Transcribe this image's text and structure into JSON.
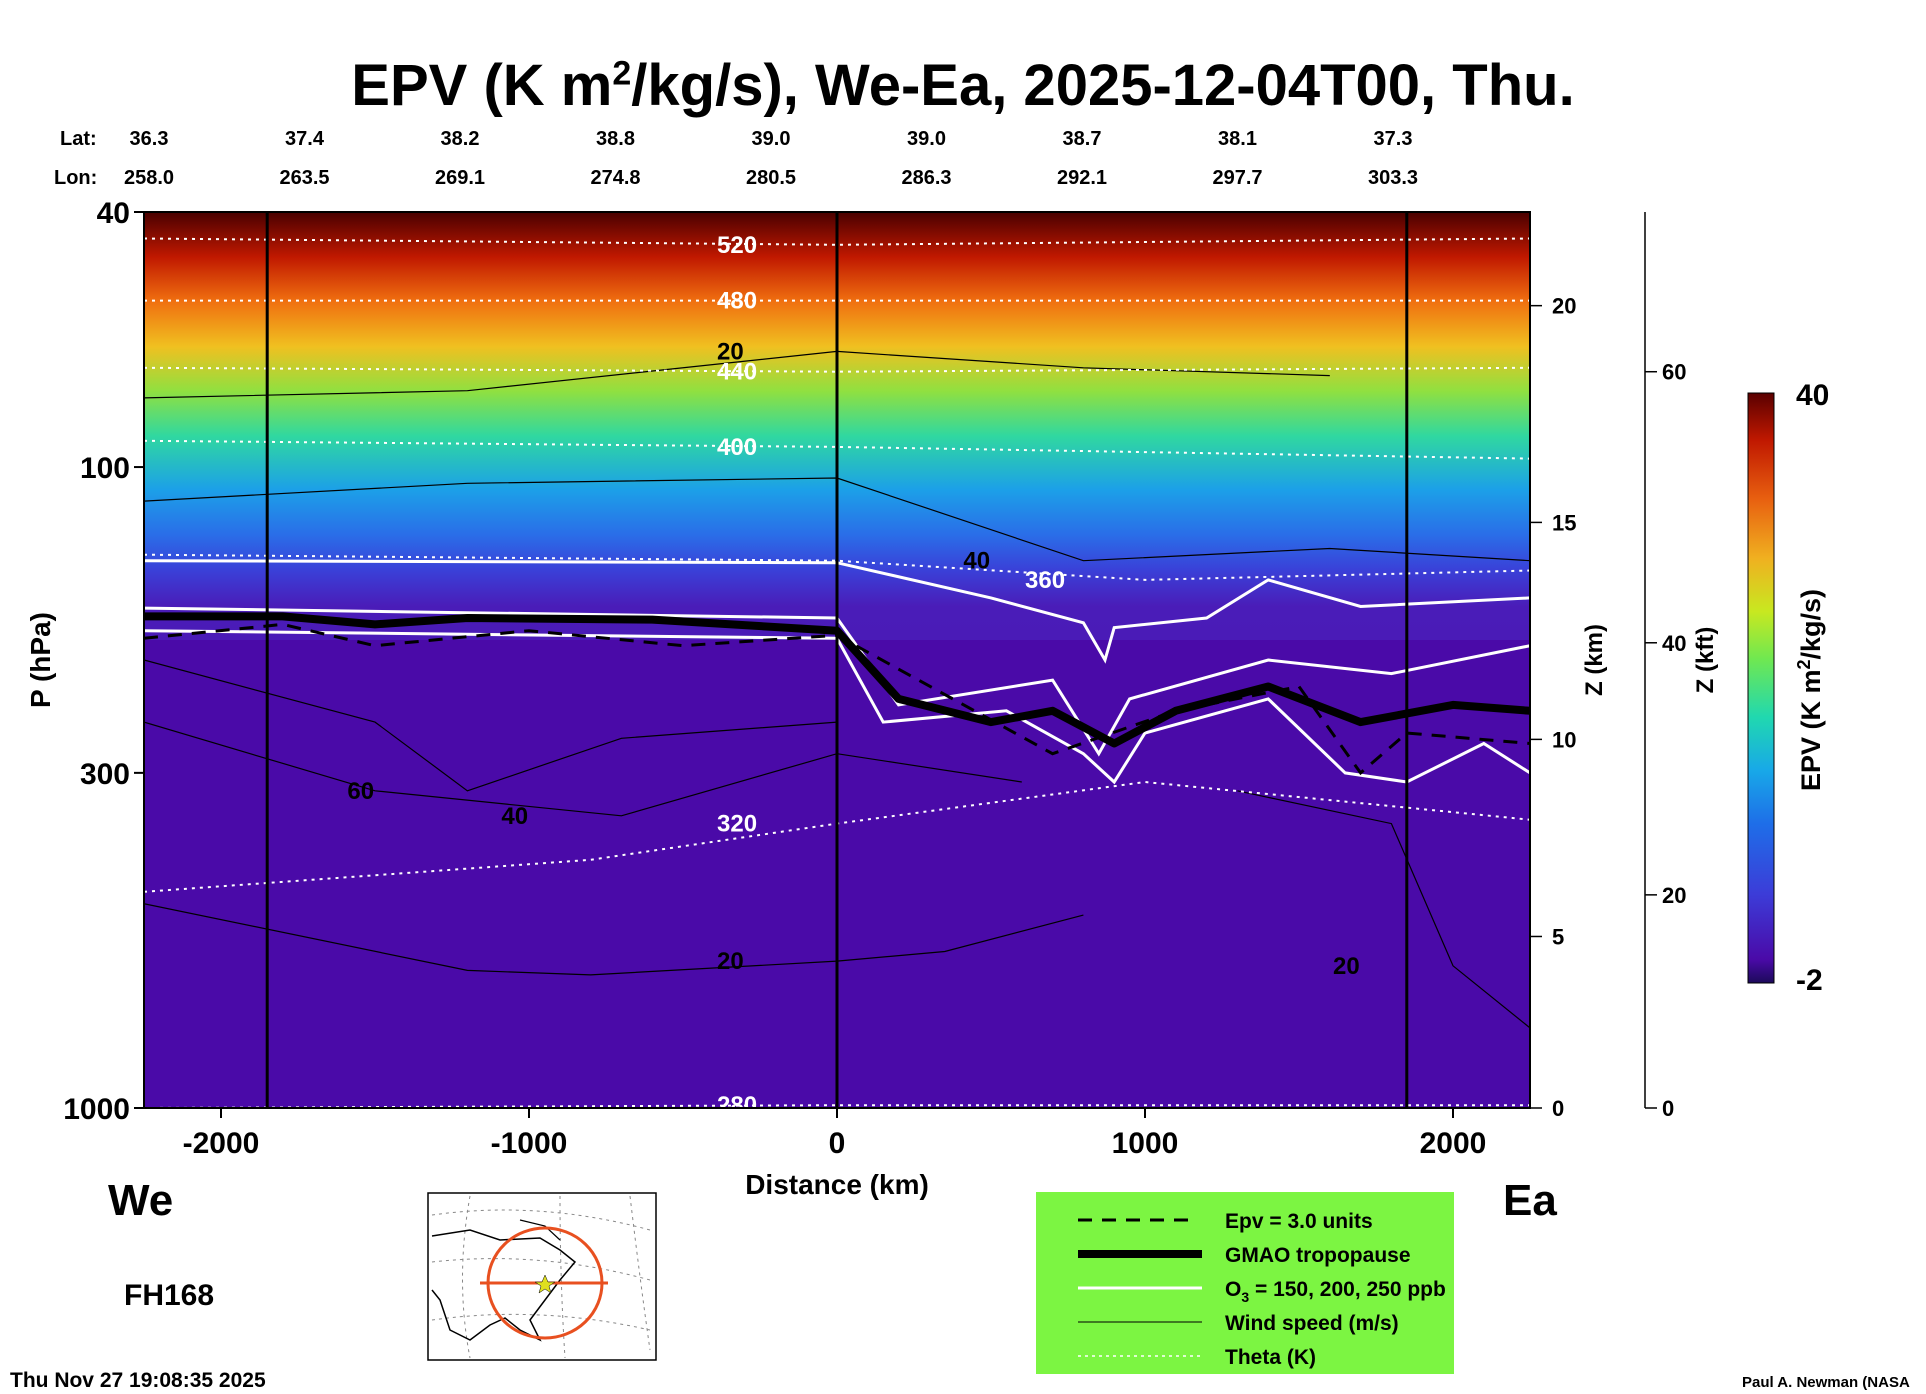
{
  "title": {
    "main_prefix": "EPV (K m",
    "main_sup": "2",
    "main_suffix": "/kg/s), We-Ea, 2025-12-04T00, Thu."
  },
  "top_axis": {
    "lat_label": "Lat:",
    "lon_label": "Lon:",
    "lat": [
      "36.3",
      "37.4",
      "38.2",
      "38.8",
      "39.0",
      "39.0",
      "38.7",
      "38.1",
      "37.3"
    ],
    "lon": [
      "258.0",
      "263.5",
      "269.1",
      "274.8",
      "280.5",
      "286.3",
      "292.1",
      "297.7",
      "303.3"
    ]
  },
  "footer": {
    "west_label": "We",
    "east_label": "Ea",
    "forecast_hour": "FH168",
    "timestamp": "Thu Nov 27 19:08:35 2025",
    "credit": "Paul A. Newman (NASA"
  },
  "legend": {
    "background": "#7cf542",
    "items": [
      {
        "label": "Epv = 3.0 units",
        "style": "dashed-black"
      },
      {
        "label": "GMAO tropopause",
        "style": "thick-black"
      },
      {
        "label_prefix": "O",
        "label_sub": "3",
        "label_suffix": " = 150, 200, 250 ppb",
        "style": "white"
      },
      {
        "label": "Wind speed (m/s)",
        "style": "thin-black"
      },
      {
        "label": "Theta (K)",
        "style": "white-dotted"
      }
    ]
  },
  "colors": {
    "epv_low": "#4a0aa8",
    "epv_high": "#5a0000",
    "tropopause": "#000000",
    "ozone": "#ffffff",
    "legend_bg": "#7cf542"
  },
  "chart_data": {
    "type": "heatmap",
    "xlabel": "Distance (km)",
    "ylabel": "P (hPa)",
    "xlim": [
      -2250,
      2250
    ],
    "ylim": [
      1000,
      40
    ],
    "y_scale": "log",
    "xticks": [
      -2000,
      -1000,
      0,
      1000,
      2000
    ],
    "xtick_labels": [
      "-2000",
      "-1000",
      "0",
      "1000",
      "2000"
    ],
    "yticks": [
      40,
      100,
      300,
      1000
    ],
    "ytick_labels": [
      "40",
      "100",
      "300",
      "1000"
    ],
    "vertical_markers_km": [
      -1850,
      0,
      1850
    ],
    "z_km_axis": {
      "label": "Z (km)",
      "ticks": [
        {
          "value": "20",
          "p": 56
        },
        {
          "value": "15",
          "p": 122
        },
        {
          "value": "10",
          "p": 266
        },
        {
          "value": "5",
          "p": 540
        },
        {
          "value": "0",
          "p": 1000
        }
      ]
    },
    "z_kft_axis": {
      "label": "Z (kft)",
      "ticks": [
        {
          "value": "60",
          "p": 71
        },
        {
          "value": "40",
          "p": 188
        },
        {
          "value": "20",
          "p": 465
        },
        {
          "value": "0",
          "p": 1000
        }
      ]
    },
    "colorbar": {
      "label_prefix": "EPV (K m",
      "label_sup": "2",
      "label_suffix": "/kg/s)",
      "min": -2,
      "max": 40,
      "max_label": "40",
      "min_label": "-2",
      "colors": [
        "#1c0a5a",
        "#4a0aa8",
        "#3c3cd8",
        "#1e6ee8",
        "#18a8e8",
        "#20d8b0",
        "#70e850",
        "#c8e820",
        "#f0b020",
        "#e86010",
        "#c01800",
        "#5a0000"
      ]
    },
    "theta_contours": [
      {
        "label": "520",
        "points": [
          [
            -2250,
            44
          ],
          [
            0,
            45
          ],
          [
            2250,
            44
          ]
        ]
      },
      {
        "label": "480",
        "points": [
          [
            -2250,
            55
          ],
          [
            0,
            55
          ],
          [
            2250,
            55
          ]
        ]
      },
      {
        "label": "440",
        "points": [
          [
            -2250,
            70
          ],
          [
            0,
            71
          ],
          [
            2250,
            70
          ]
        ]
      },
      {
        "label": "400",
        "points": [
          [
            -2250,
            91
          ],
          [
            0,
            93
          ],
          [
            2250,
            97
          ]
        ]
      },
      {
        "label": "360",
        "points": [
          [
            -2250,
            137
          ],
          [
            0,
            140
          ],
          [
            1000,
            150
          ],
          [
            2250,
            145
          ]
        ]
      },
      {
        "label": "320",
        "points": [
          [
            -2250,
            460
          ],
          [
            -800,
            410
          ],
          [
            0,
            360
          ],
          [
            1000,
            310
          ],
          [
            2250,
            355
          ]
        ]
      },
      {
        "label": "280",
        "points": [
          [
            -2250,
            1000
          ],
          [
            0,
            990
          ],
          [
            2250,
            990
          ]
        ]
      }
    ],
    "wind_contours": [
      {
        "label": "20",
        "points": [
          [
            -2250,
            78
          ],
          [
            -1200,
            76
          ],
          [
            0,
            66
          ],
          [
            800,
            70
          ],
          [
            1600,
            72
          ]
        ]
      },
      {
        "label": "40",
        "points": [
          [
            -2250,
            113
          ],
          [
            -1200,
            106
          ],
          [
            0,
            104
          ],
          [
            800,
            140
          ],
          [
            1600,
            134
          ],
          [
            2250,
            140
          ]
        ]
      },
      {
        "label": "60",
        "points": [
          [
            -2250,
            200
          ],
          [
            -1500,
            250
          ],
          [
            -1200,
            320
          ],
          [
            -700,
            265
          ],
          [
            0,
            250
          ]
        ]
      },
      {
        "label": "40",
        "points": [
          [
            -2250,
            250
          ],
          [
            -1500,
            320
          ],
          [
            -700,
            350
          ],
          [
            0,
            280
          ],
          [
            600,
            310
          ]
        ]
      },
      {
        "label": "20",
        "points": [
          [
            -2250,
            480
          ],
          [
            -1200,
            610
          ],
          [
            -800,
            620
          ],
          [
            0,
            590
          ],
          [
            350,
            570
          ],
          [
            800,
            500
          ]
        ]
      },
      {
        "label": "20",
        "points": [
          [
            1300,
            320
          ],
          [
            1800,
            360
          ],
          [
            2000,
            600
          ],
          [
            2250,
            750
          ]
        ]
      }
    ],
    "tropopause": [
      [
        -2250,
        171
      ],
      [
        -1800,
        171
      ],
      [
        -1500,
        176
      ],
      [
        -1200,
        172
      ],
      [
        -600,
        173
      ],
      [
        0,
        180
      ],
      [
        200,
        230
      ],
      [
        500,
        250
      ],
      [
        700,
        240
      ],
      [
        900,
        270
      ],
      [
        1100,
        240
      ],
      [
        1400,
        220
      ],
      [
        1700,
        250
      ],
      [
        2000,
        235
      ],
      [
        2250,
        240
      ]
    ],
    "ozone_contours": [
      {
        "label": "150",
        "points": [
          [
            -2250,
            140
          ],
          [
            0,
            141
          ],
          [
            500,
            160
          ],
          [
            800,
            175
          ],
          [
            870,
            200
          ],
          [
            900,
            178
          ],
          [
            1200,
            172
          ],
          [
            1400,
            150
          ],
          [
            1700,
            165
          ],
          [
            2250,
            160
          ]
        ]
      },
      {
        "label": "200",
        "points": [
          [
            -2250,
            166
          ],
          [
            0,
            172
          ],
          [
            200,
            235
          ],
          [
            700,
            215
          ],
          [
            850,
            280
          ],
          [
            950,
            230
          ],
          [
            1400,
            200
          ],
          [
            1800,
            210
          ],
          [
            2250,
            190
          ]
        ]
      },
      {
        "label": "250",
        "points": [
          [
            -2250,
            180
          ],
          [
            0,
            185
          ],
          [
            150,
            250
          ],
          [
            550,
            240
          ],
          [
            800,
            280
          ],
          [
            900,
            310
          ],
          [
            1000,
            260
          ],
          [
            1400,
            230
          ],
          [
            1650,
            300
          ],
          [
            1850,
            310
          ],
          [
            2100,
            270
          ],
          [
            2250,
            300
          ]
        ]
      }
    ],
    "epv3_contour": [
      [
        -2250,
        185
      ],
      [
        -1800,
        176
      ],
      [
        -1500,
        190
      ],
      [
        -1000,
        180
      ],
      [
        -500,
        190
      ],
      [
        0,
        183
      ],
      [
        700,
        280
      ],
      [
        1100,
        240
      ],
      [
        1500,
        220
      ],
      [
        1700,
        300
      ],
      [
        1850,
        260
      ],
      [
        2250,
        270
      ]
    ]
  }
}
